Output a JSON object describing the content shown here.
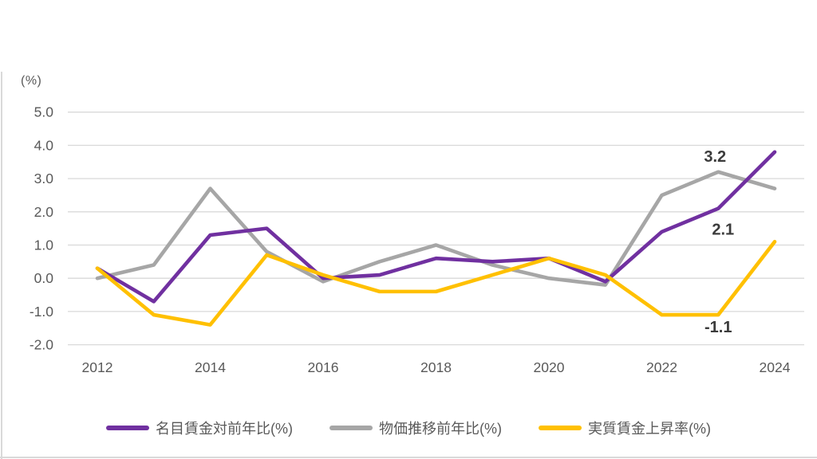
{
  "chart_data": {
    "type": "line",
    "title": "",
    "ylabel_unit": "(%)",
    "x": [
      2012,
      2013,
      2014,
      2015,
      2016,
      2017,
      2018,
      2019,
      2020,
      2021,
      2022,
      2023,
      2024
    ],
    "xtick_labels": [
      "2012",
      "2014",
      "2016",
      "2018",
      "2020",
      "2022",
      "2024"
    ],
    "ytick_labels": [
      "5.0",
      "4.0",
      "3.0",
      "2.0",
      "1.0",
      "0.0",
      "-1.0",
      "-2.0"
    ],
    "ytick_values": [
      5.0,
      4.0,
      3.0,
      2.0,
      1.0,
      0.0,
      -1.0,
      -2.0
    ],
    "ylim": [
      -2.0,
      5.0
    ],
    "grid": "horizontal-only",
    "legend_position": "bottom-center",
    "series": [
      {
        "name": "名目賃金対前年比(%)",
        "color": "#7030A0",
        "values": [
          0.3,
          -0.7,
          1.3,
          1.5,
          0.0,
          0.1,
          0.6,
          0.5,
          0.6,
          -0.1,
          1.4,
          2.1,
          3.8
        ]
      },
      {
        "name": "物価推移前年比(%)",
        "color": "#A6A6A6",
        "values": [
          0.0,
          0.4,
          2.7,
          0.8,
          -0.1,
          0.5,
          1.0,
          0.4,
          0.0,
          -0.2,
          2.5,
          3.2,
          2.7
        ]
      },
      {
        "name": "実質賃金上昇率(%)",
        "color": "#FFC000",
        "values": [
          0.3,
          -1.1,
          -1.4,
          0.7,
          0.1,
          -0.4,
          -0.4,
          0.1,
          0.6,
          0.1,
          -1.1,
          -1.1,
          1.1
        ]
      }
    ],
    "annotations": [
      {
        "text": "3.2",
        "series_index": 1,
        "year": 2023
      },
      {
        "text": "2.1",
        "series_index": 0,
        "year": 2023
      },
      {
        "text": "-1.1",
        "series_index": 2,
        "year": 2023
      }
    ]
  },
  "colors": {
    "gridline": "#D9D9D9",
    "axis_text": "#595959",
    "data_label": "#3B3B3B",
    "page_border": "#D9D9D9"
  }
}
